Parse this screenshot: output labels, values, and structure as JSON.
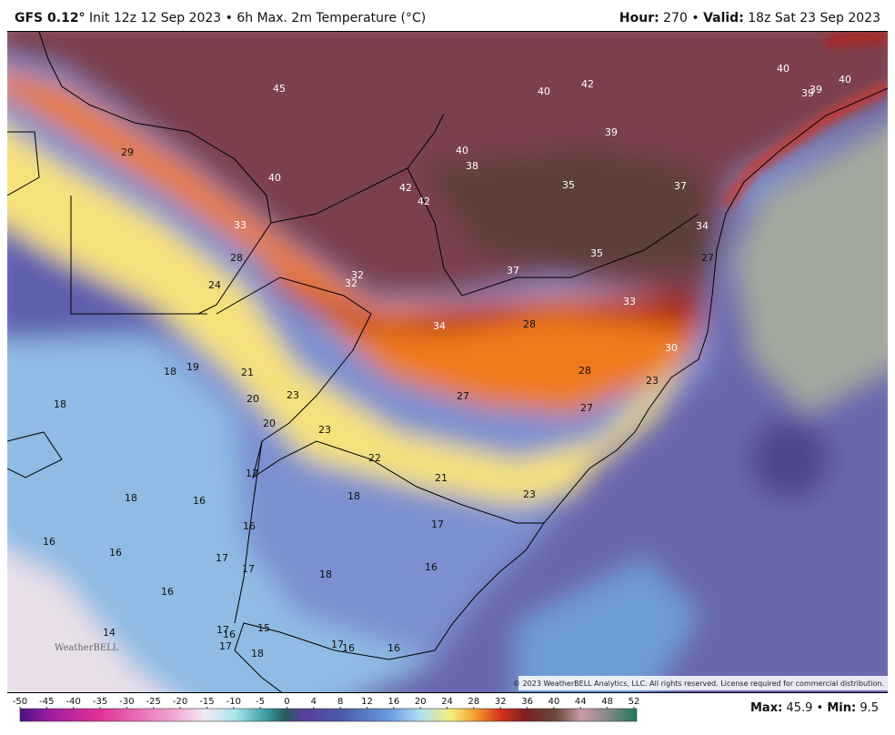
{
  "header": {
    "model": "GFS 0.12°",
    "description": "Init 12z 12 Sep 2023 • 6h Max. 2m Temperature (°C)",
    "hour_label": "Hour:",
    "hour": "270 •",
    "valid_label": "Valid:",
    "valid": "18z Sat 23 Sep 2023"
  },
  "map_labels": [
    45,
    40,
    42,
    40,
    39,
    39,
    40,
    29,
    39,
    40,
    38,
    40,
    42,
    42,
    35,
    37,
    33,
    34,
    35,
    28,
    27,
    24,
    32,
    32,
    37,
    33,
    34,
    28,
    30,
    18,
    19,
    21,
    28,
    23,
    20,
    23,
    27,
    18,
    27,
    20,
    23,
    22,
    21,
    17,
    18,
    16,
    18,
    23,
    16,
    17,
    16,
    16,
    17,
    17,
    18,
    16,
    16,
    15,
    14,
    17,
    16,
    17,
    18,
    17,
    16,
    16
  ],
  "logo": "WeatherBELL",
  "copyright": "© 2023 WeatherBELL Analytics, LLC. All rights reserved. License required for commercial distribution.",
  "colorbar": {
    "ticks": [
      -50,
      -45,
      -40,
      -35,
      -30,
      -25,
      -20,
      -15,
      -10,
      -5,
      0,
      4,
      8,
      12,
      16,
      20,
      24,
      28,
      32,
      36,
      40,
      44,
      48,
      52
    ]
  },
  "extremes": {
    "max_label": "Max:",
    "max": "45.9 •",
    "min_label": "Min:",
    "min": "9.5"
  }
}
